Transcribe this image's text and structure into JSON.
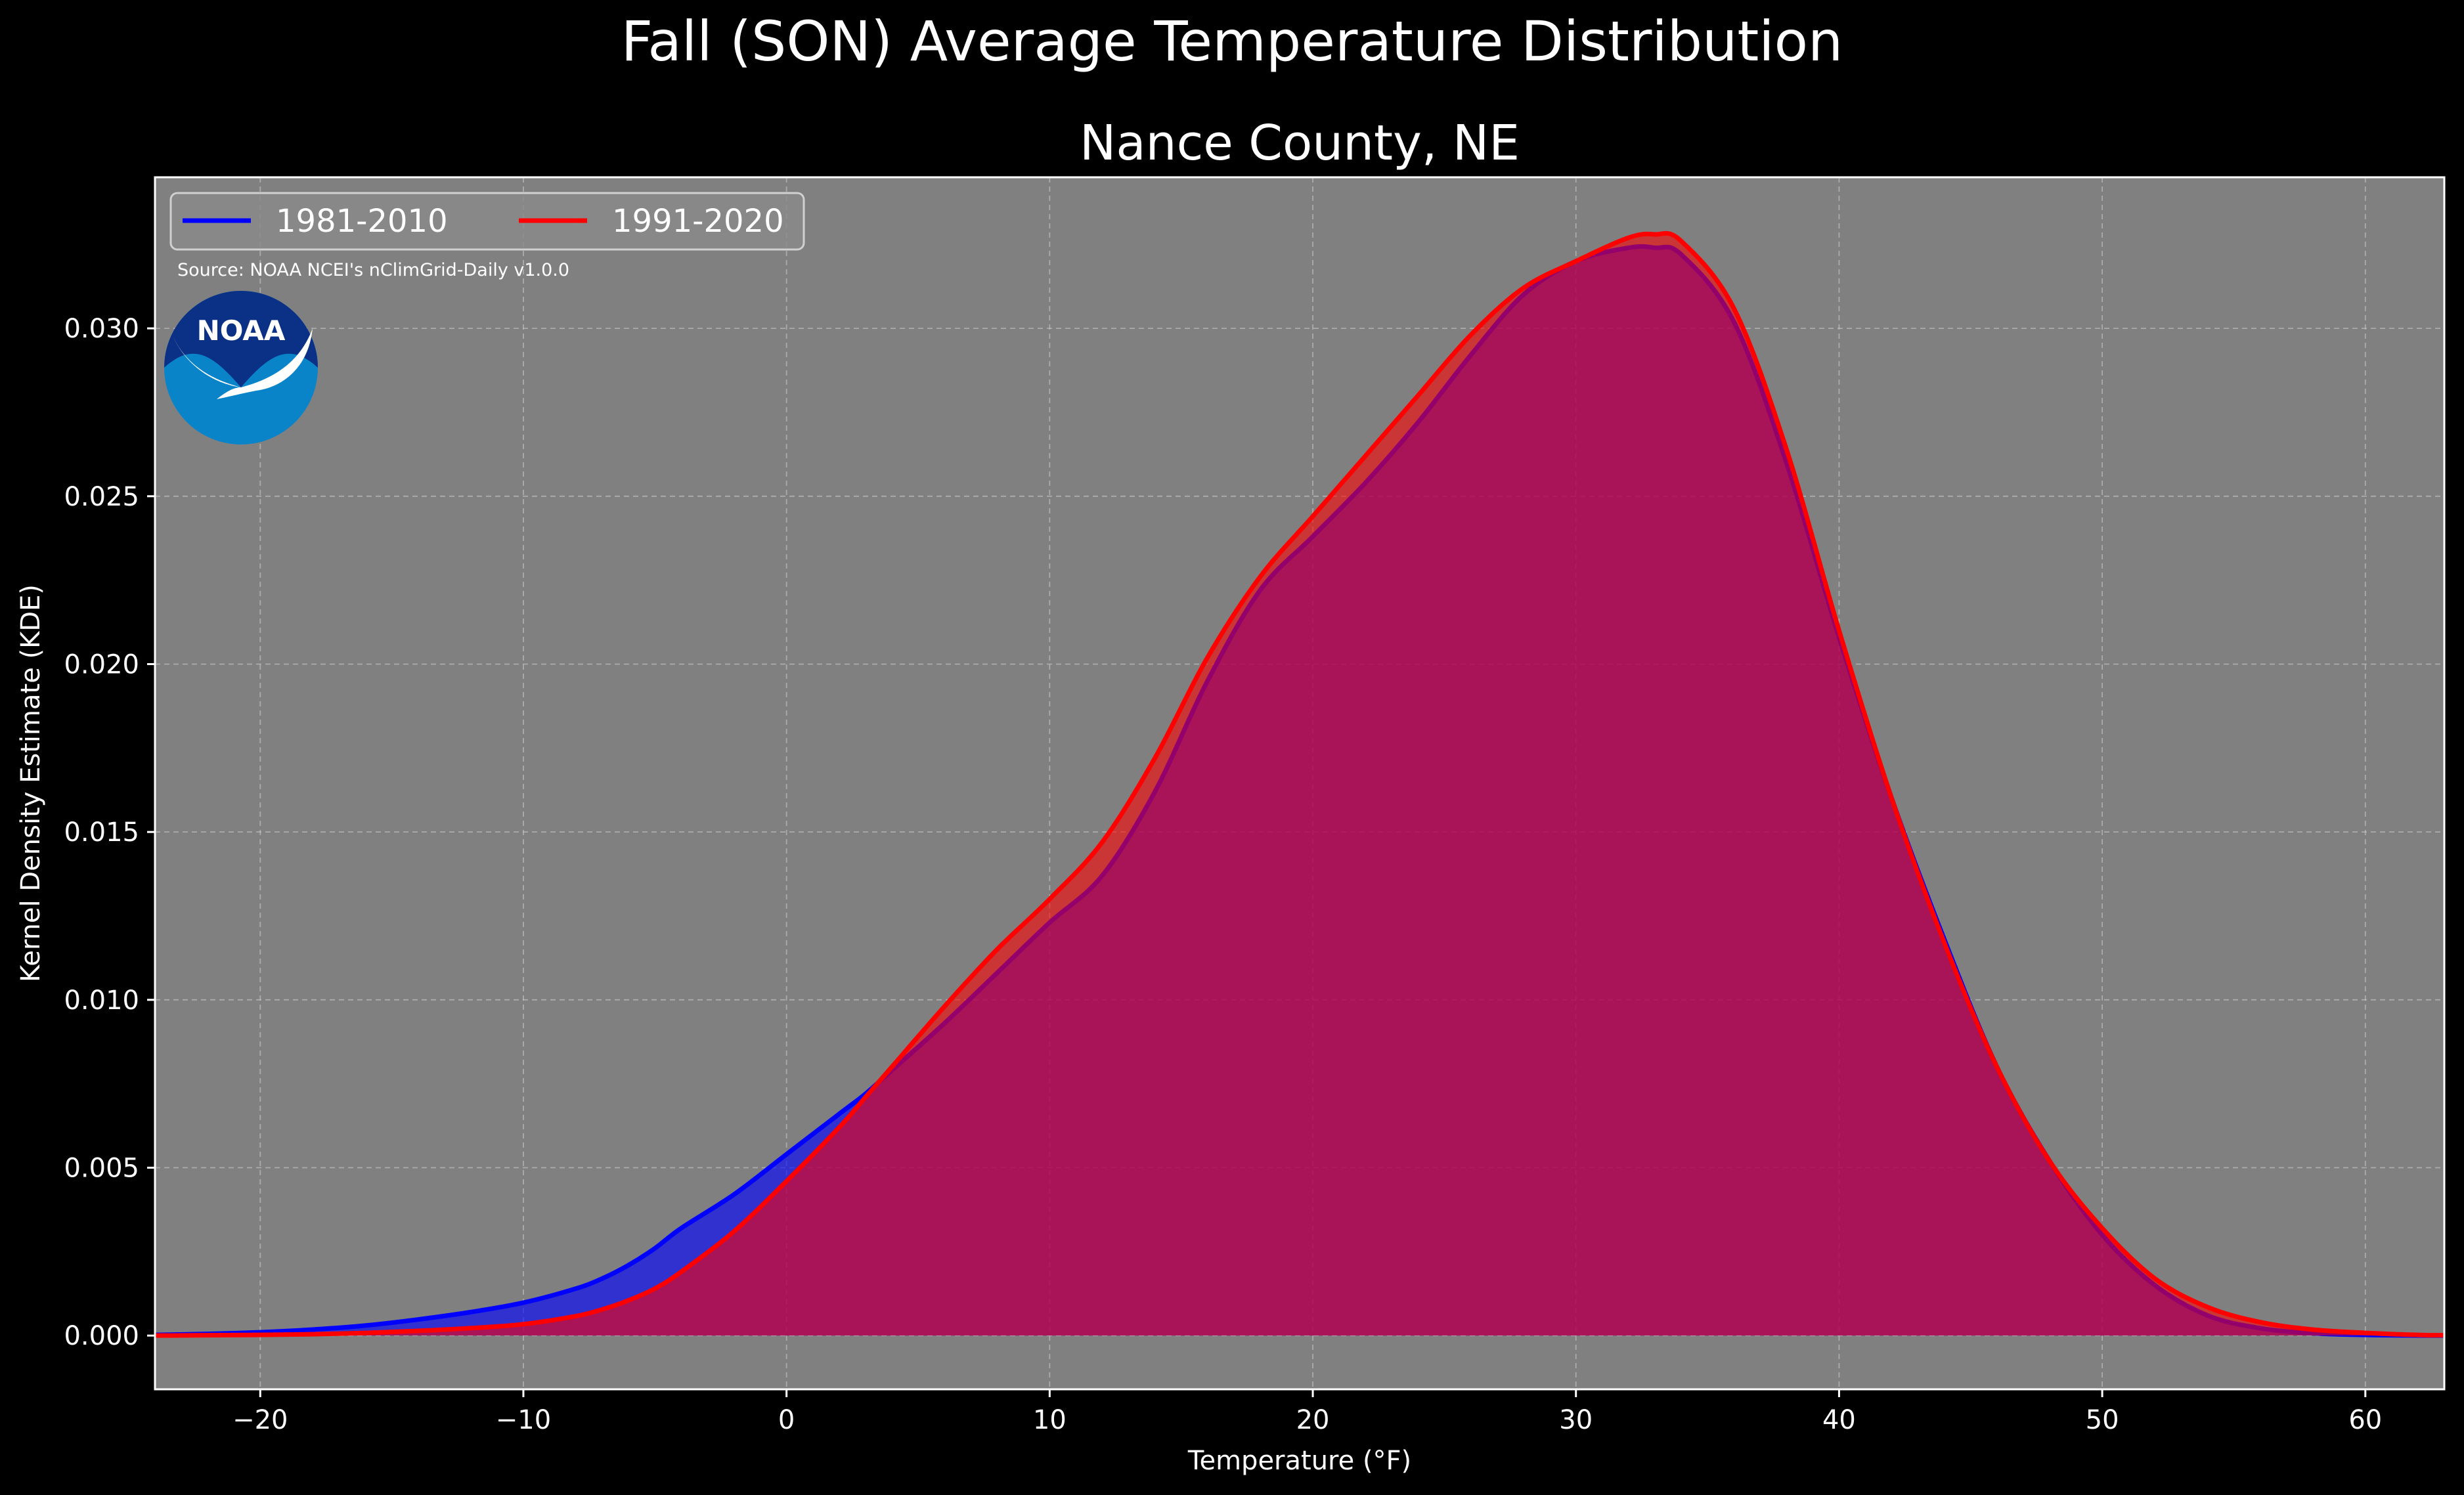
{
  "chart_data": {
    "type": "area",
    "suptitle": "Fall (SON) Average Temperature Distribution",
    "title": "Nance County, NE",
    "xlabel": "Temperature (°F)",
    "ylabel": "Kernel Density Estimate (KDE)",
    "source": "Source: NOAA NCEI's nClimGrid-Daily v1.0.0",
    "logo_text": "NOAA",
    "xlim": [
      -24,
      63
    ],
    "ylim": [
      -0.0016,
      0.0345
    ],
    "x_ticks": [
      -20,
      -10,
      0,
      10,
      20,
      30,
      40,
      50,
      60
    ],
    "x_tick_labels": [
      "−20",
      "−10",
      "0",
      "10",
      "20",
      "30",
      "40",
      "50",
      "60"
    ],
    "y_ticks": [
      0.0,
      0.005,
      0.01,
      0.015,
      0.02,
      0.025,
      0.03
    ],
    "y_tick_labels": [
      "0.000",
      "0.005",
      "0.010",
      "0.015",
      "0.020",
      "0.025",
      "0.030"
    ],
    "grid": true,
    "legend_position": "top-left",
    "colors": {
      "figure_bg": "#000000",
      "axes_bg": "#808080",
      "series_1981": "#0000ff",
      "series_1991": "#ff0000",
      "logo_dark": "#0a3185",
      "logo_light": "#0a84c9"
    },
    "series": [
      {
        "name": "1981-2010",
        "color": "#0000ff",
        "x": [
          -24,
          -22,
          -20,
          -18,
          -16,
          -14,
          -12,
          -10,
          -8,
          -7,
          -6,
          -5,
          -4,
          -2,
          0,
          2,
          3,
          4,
          6,
          8,
          10,
          12,
          14,
          16,
          18,
          20,
          22,
          24,
          26,
          28,
          30,
          32,
          33,
          34,
          36,
          38,
          40,
          42,
          44,
          46,
          48,
          50,
          52,
          54,
          56,
          58,
          60,
          62,
          63
        ],
        "y": [
          2e-05,
          5e-05,
          0.0001,
          0.00018,
          0.0003,
          0.00048,
          0.0007,
          0.00098,
          0.0014,
          0.0017,
          0.0021,
          0.0026,
          0.0032,
          0.0042,
          0.0054,
          0.0066,
          0.0072,
          0.0079,
          0.0093,
          0.0108,
          0.0123,
          0.0137,
          0.0162,
          0.0195,
          0.0222,
          0.0238,
          0.0254,
          0.0272,
          0.0292,
          0.031,
          0.032,
          0.0324,
          0.0324,
          0.0322,
          0.0302,
          0.026,
          0.0208,
          0.016,
          0.0118,
          0.008,
          0.0052,
          0.003,
          0.0015,
          0.0006,
          0.00022,
          7e-05,
          2e-05,
          3e-06,
          0.0
        ]
      },
      {
        "name": "1991-2020",
        "color": "#ff0000",
        "x": [
          -24,
          -22,
          -20,
          -18,
          -16,
          -14,
          -12,
          -10,
          -8,
          -7,
          -6,
          -5,
          -4,
          -2,
          0,
          2,
          3,
          4,
          6,
          8,
          10,
          12,
          14,
          16,
          18,
          20,
          22,
          24,
          26,
          28,
          30,
          32,
          33,
          34,
          36,
          38,
          40,
          42,
          44,
          46,
          48,
          50,
          52,
          54,
          56,
          58,
          60,
          62,
          63
        ],
        "y": [
          0.0,
          1e-05,
          2e-05,
          4e-05,
          8e-05,
          0.00014,
          0.00022,
          0.00034,
          0.00058,
          0.00078,
          0.00105,
          0.0014,
          0.0019,
          0.0031,
          0.0046,
          0.0062,
          0.0071,
          0.008,
          0.0098,
          0.0115,
          0.013,
          0.0147,
          0.0172,
          0.0202,
          0.0226,
          0.0244,
          0.0262,
          0.028,
          0.0298,
          0.0312,
          0.032,
          0.0327,
          0.0328,
          0.0326,
          0.0306,
          0.0264,
          0.021,
          0.016,
          0.0117,
          0.008,
          0.0052,
          0.0032,
          0.0017,
          0.00085,
          0.0004,
          0.00018,
          8e-05,
          2e-05,
          1e-05
        ]
      }
    ]
  }
}
